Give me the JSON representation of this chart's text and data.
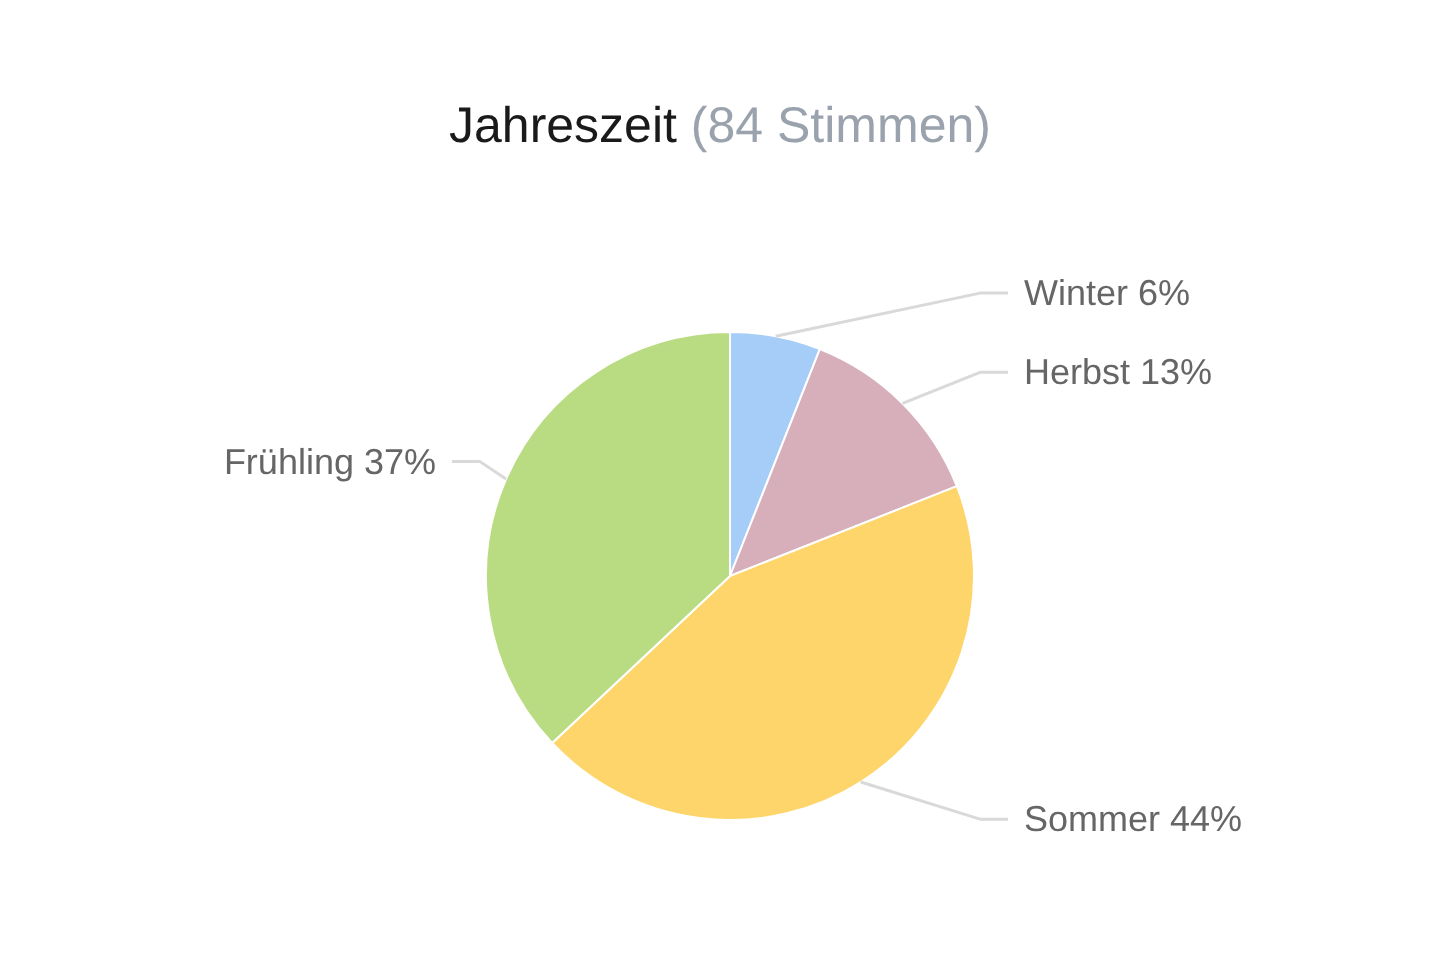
{
  "chart_data": {
    "type": "pie",
    "title": "Jahreszeit",
    "subtitle": "(84 Stimmen)",
    "categories": [
      "Winter",
      "Herbst",
      "Sommer",
      "Frühling"
    ],
    "values": [
      6,
      13,
      44,
      37
    ],
    "colors": [
      "#a5cdf8",
      "#d7afbb",
      "#fed56a",
      "#b9dc83"
    ],
    "value_labels": [
      "6%",
      "13%",
      "44%",
      "37%"
    ]
  }
}
